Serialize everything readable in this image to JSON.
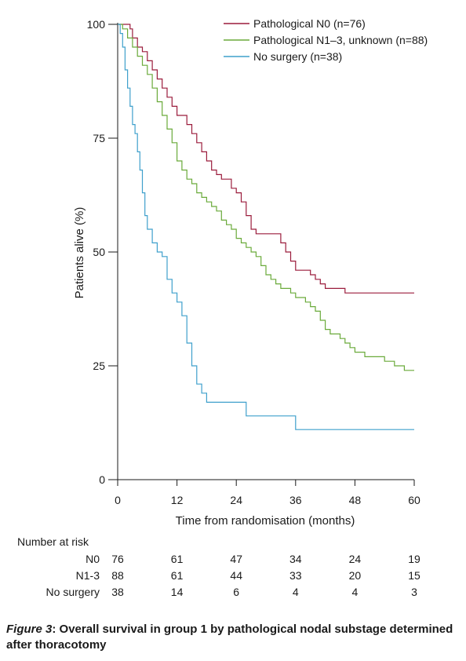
{
  "chart_data": {
    "type": "line",
    "xlabel": "Time from randomisation (months)",
    "ylabel": "Patients alive (%)",
    "xlim": [
      0,
      60
    ],
    "ylim": [
      0,
      100
    ],
    "xticks": [
      "0",
      "12",
      "24",
      "36",
      "48",
      "60"
    ],
    "yticks": [
      "0",
      "25",
      "50",
      "75",
      "100"
    ],
    "legend_position": "top-right",
    "series": [
      {
        "name": "Pathological N0 (n=76)",
        "color": "#9b1c3c",
        "x": [
          0,
          2,
          2.5,
          3,
          4,
          5,
          6,
          7,
          8,
          9,
          10,
          11,
          12,
          13,
          14,
          15,
          16,
          17,
          18,
          19,
          20,
          21,
          22,
          23,
          24,
          25,
          26,
          27,
          28,
          29,
          30,
          31,
          32,
          33,
          34,
          35,
          36,
          37,
          38,
          39,
          40,
          41,
          42,
          44,
          46,
          48,
          60
        ],
        "y": [
          100,
          100,
          99,
          97,
          95,
          94,
          92,
          90,
          88,
          86,
          84,
          82,
          80,
          80,
          78,
          76,
          74,
          72,
          70,
          68,
          67,
          66,
          66,
          64,
          63,
          61,
          58,
          55,
          54,
          54,
          54,
          54,
          54,
          52,
          50,
          48,
          46,
          46,
          46,
          45,
          44,
          43,
          42,
          42,
          41,
          41,
          41
        ]
      },
      {
        "name": "Pathological N1–3, unknown (n=88)",
        "color": "#6aaa3a",
        "x": [
          0,
          1,
          2,
          3,
          4,
          5,
          6,
          7,
          8,
          9,
          10,
          11,
          12,
          13,
          14,
          15,
          16,
          17,
          18,
          19,
          20,
          21,
          22,
          23,
          24,
          25,
          26,
          27,
          28,
          29,
          30,
          31,
          32,
          33,
          34,
          35,
          36,
          37,
          38,
          39,
          40,
          41,
          42,
          43,
          44,
          45,
          46,
          47,
          48,
          50,
          52,
          54,
          56,
          58,
          60
        ],
        "y": [
          100,
          99,
          97,
          95,
          93,
          91,
          89,
          86,
          83,
          80,
          77,
          74,
          70,
          68,
          66,
          65,
          63,
          62,
          61,
          60,
          59,
          57,
          56,
          55,
          53,
          52,
          51,
          50,
          49,
          47,
          45,
          44,
          43,
          42,
          42,
          41,
          40,
          40,
          39,
          38,
          37,
          35,
          33,
          32,
          32,
          31,
          30,
          29,
          28,
          27,
          27,
          26,
          25,
          24,
          24
        ]
      },
      {
        "name": "No surgery (n=38)",
        "color": "#3fa0cc",
        "x": [
          0,
          0.5,
          1,
          1.5,
          2,
          2.5,
          3,
          3.5,
          4,
          4.5,
          5,
          5.5,
          6,
          7,
          8,
          9,
          10,
          11,
          12,
          13,
          14,
          15,
          16,
          17,
          18,
          20,
          24,
          26,
          28,
          30,
          36,
          42,
          48,
          54,
          60
        ],
        "y": [
          100,
          98,
          95,
          90,
          86,
          82,
          78,
          76,
          72,
          68,
          63,
          58,
          55,
          52,
          50,
          49,
          44,
          41,
          39,
          36,
          30,
          25,
          21,
          19,
          17,
          17,
          17,
          14,
          14,
          14,
          11,
          11,
          11,
          11,
          11
        ]
      }
    ],
    "at_risk": {
      "title": "Number at risk",
      "times": [
        0,
        12,
        24,
        36,
        48,
        60
      ],
      "rows": [
        {
          "label": "N0",
          "values": [
            "76",
            "61",
            "47",
            "34",
            "24",
            "19"
          ]
        },
        {
          "label": "N1-3",
          "values": [
            "88",
            "61",
            "44",
            "33",
            "20",
            "15"
          ]
        },
        {
          "label": "No surgery",
          "values": [
            "38",
            "14",
            "6",
            "4",
            "4",
            "3"
          ]
        }
      ]
    }
  },
  "caption": {
    "figure_label": "Figure 3",
    "text": ": Overall survival in group 1 by pathological nodal substage determined after thoracotomy"
  }
}
